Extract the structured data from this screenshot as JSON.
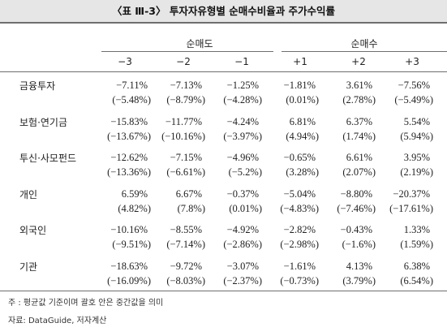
{
  "title": "〈표 Ⅲ-3〉 투자자유형별 순매수비율과 주가수익률",
  "groups": [
    "순매도",
    "순매수"
  ],
  "periods": [
    "−3",
    "−2",
    "−1",
    "+1",
    "+2",
    "+3"
  ],
  "rows": [
    {
      "label": "금융투자",
      "values": [
        "−7.11%",
        "−7.13%",
        "−1.25%",
        "−1.81%",
        "3.61%",
        "−7.56%"
      ],
      "medians": [
        "(−5.48%)",
        "(−8.79%)",
        "(−4.28%)",
        "(0.01%)",
        "(2.78%)",
        "(−5.49%)"
      ]
    },
    {
      "label": "보험·연기금",
      "values": [
        "−15.83%",
        "−11.77%",
        "−4.24%",
        "6.81%",
        "6.37%",
        "5.54%"
      ],
      "medians": [
        "(−13.67%)",
        "(−10.16%)",
        "(−3.97%)",
        "(4.94%)",
        "(1.74%)",
        "(5.94%)"
      ]
    },
    {
      "label": "투신·사모펀드",
      "values": [
        "−12.62%",
        "−7.15%",
        "−4.96%",
        "−0.65%",
        "6.61%",
        "3.95%"
      ],
      "medians": [
        "(−13.36%)",
        "(−6.61%)",
        "(−5.2%)",
        "(3.28%)",
        "(2.07%)",
        "(2.19%)"
      ]
    },
    {
      "label": "개인",
      "values": [
        "6.59%",
        "6.67%",
        "−0.37%",
        "−5.04%",
        "−8.80%",
        "−20.37%"
      ],
      "medians": [
        "(4.82%)",
        "(7.8%)",
        "(0.01%)",
        "(−4.83%)",
        "(−7.46%)",
        "(−17.61%)"
      ]
    },
    {
      "label": "외국인",
      "values": [
        "−10.16%",
        "−8.55%",
        "−4.92%",
        "−2.82%",
        "−0.43%",
        "1.33%"
      ],
      "medians": [
        "(−9.51%)",
        "(−7.14%)",
        "(−2.86%)",
        "(−2.98%)",
        "(−1.6%)",
        "(1.59%)"
      ]
    },
    {
      "label": "기관",
      "values": [
        "−18.63%",
        "−9.72%",
        "−3.07%",
        "−1.61%",
        "4.13%",
        "6.38%"
      ],
      "medians": [
        "(−16.09%)",
        "(−8.03%)",
        "(−2.37%)",
        "(−0.73%)",
        "(3.79%)",
        "(6.54%)"
      ]
    }
  ],
  "note": "주  : 평균값 기준이며 괄호 안은 중간값을 의미",
  "source": "자료: DataGuide, 저자계산"
}
